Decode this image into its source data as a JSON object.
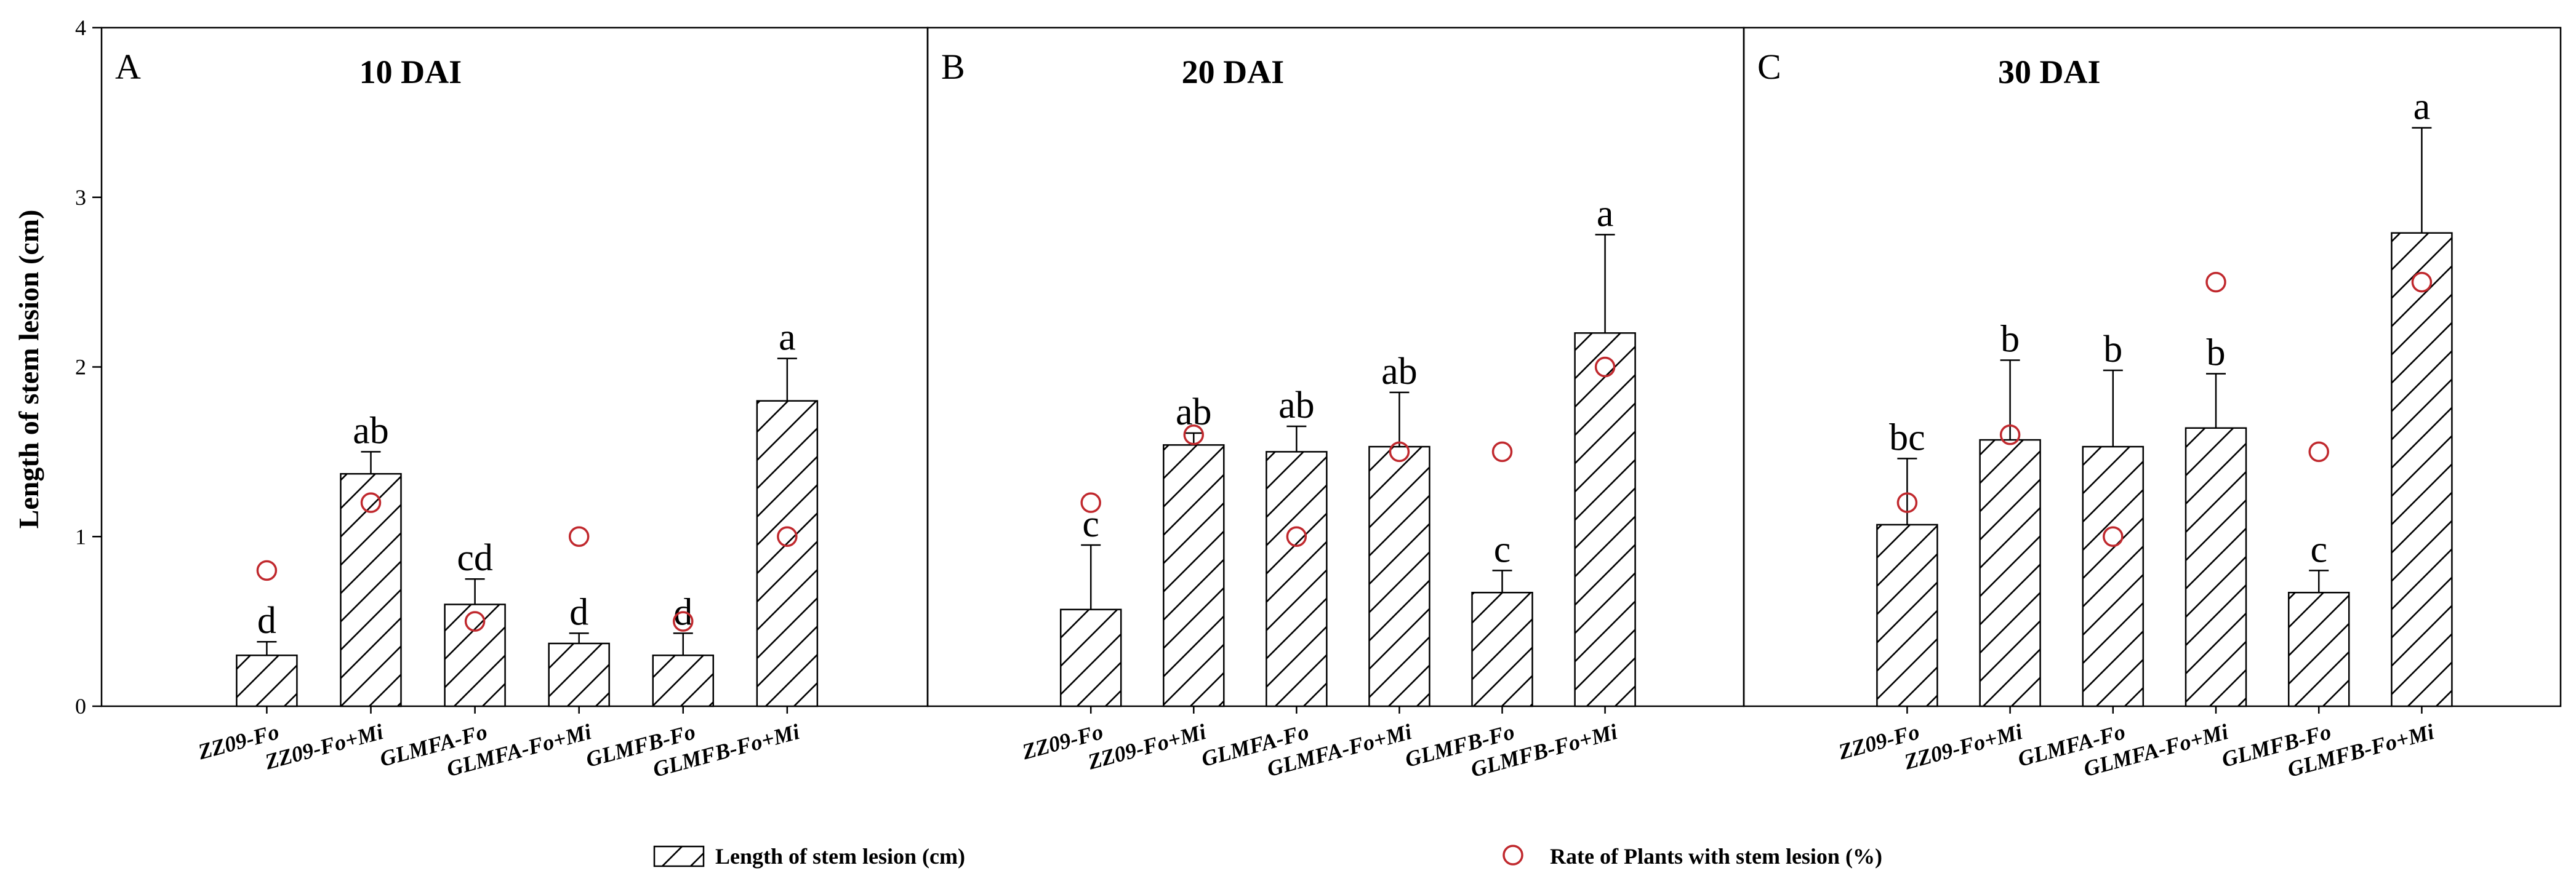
{
  "chart_data": {
    "type": "bar",
    "ylabel": "Length of  stem lesion (cm)",
    "ylim": [
      0,
      4
    ],
    "yticks": [
      "0",
      "1",
      "2",
      "3",
      "4"
    ],
    "categories": [
      "ZZ09-Fo",
      "ZZ09-Fo+Mi",
      "GLMFA-Fo",
      "GLMFA-Fo+Mi",
      "GLMFB-Fo",
      "GLMFB-Fo+Mi"
    ],
    "legend": {
      "position": "bottom",
      "bar_label": "Length of  stem lesion (cm)",
      "circle_label": "Rate of Plants with stem lesion (%)"
    },
    "colors": {
      "bar_fill": "#ffffff",
      "hatch": "#000000",
      "circle": "#c0282d"
    },
    "panels": [
      {
        "letter": "A",
        "title": "10 DAI",
        "values": [
          0.3,
          1.37,
          0.6,
          0.37,
          0.3,
          1.8
        ],
        "errors": [
          0.08,
          0.13,
          0.15,
          0.06,
          0.13,
          0.25
        ],
        "letters": [
          "d",
          "ab",
          "cd",
          "d",
          "d",
          "a"
        ],
        "rate": [
          0.8,
          1.2,
          0.5,
          1.0,
          0.5,
          1.0
        ]
      },
      {
        "letter": "B",
        "title": "20 DAI",
        "values": [
          0.57,
          1.54,
          1.5,
          1.53,
          0.67,
          2.2
        ],
        "errors": [
          0.38,
          0.07,
          0.15,
          0.32,
          0.13,
          0.58
        ],
        "letters": [
          "c",
          "ab",
          "ab",
          "ab",
          "c",
          "a"
        ],
        "rate": [
          1.2,
          1.6,
          1.0,
          1.5,
          1.5,
          2.0
        ]
      },
      {
        "letter": "C",
        "title": "30 DAI",
        "values": [
          1.07,
          1.57,
          1.53,
          1.64,
          0.67,
          2.79
        ],
        "errors": [
          0.39,
          0.47,
          0.45,
          0.32,
          0.13,
          0.62
        ],
        "letters": [
          "bc",
          "b",
          "b",
          "b",
          "c",
          "a"
        ],
        "rate": [
          1.2,
          1.6,
          1.0,
          2.5,
          1.5,
          2.5
        ]
      }
    ]
  }
}
